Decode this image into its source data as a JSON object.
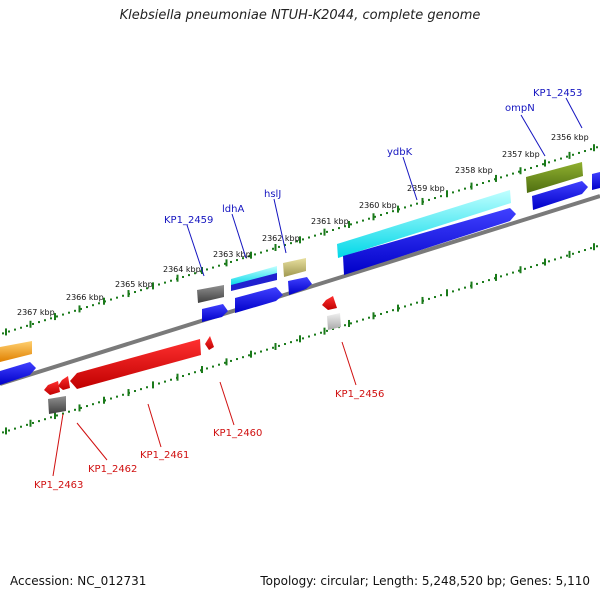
{
  "header": {
    "title": "Klebsiella pneumoniae NTUH-K2044, complete genome"
  },
  "footer": {
    "accession": "Accession: NC_012731",
    "summary": "Topology: circular; Length: 5,248,520 bp; Genes: 5,110"
  },
  "colors": {
    "forward_gene": "#1010e0",
    "reverse_gene": "#e01010",
    "backbone": "#808080",
    "tick": "#1a7a1a",
    "top_label": "#1515c0",
    "bottom_label": "#d01010"
  },
  "scale": {
    "kbp_labels": [
      "2356 kbp",
      "2357 kbp",
      "2358 kbp",
      "2359 kbp",
      "2360 kbp",
      "2361 kbp",
      "2362 kbp",
      "2363 kbp",
      "2364 kbp",
      "2365 kbp",
      "2366 kbp",
      "2367 kbp"
    ]
  },
  "top_labels": [
    "KP1_2453",
    "ompN",
    "ydbK",
    "hslJ",
    "ldhA",
    "KP1_2459"
  ],
  "bottom_labels": [
    "KP1_2456",
    "KP1_2460",
    "KP1_2461",
    "KP1_2462",
    "KP1_2463"
  ]
}
